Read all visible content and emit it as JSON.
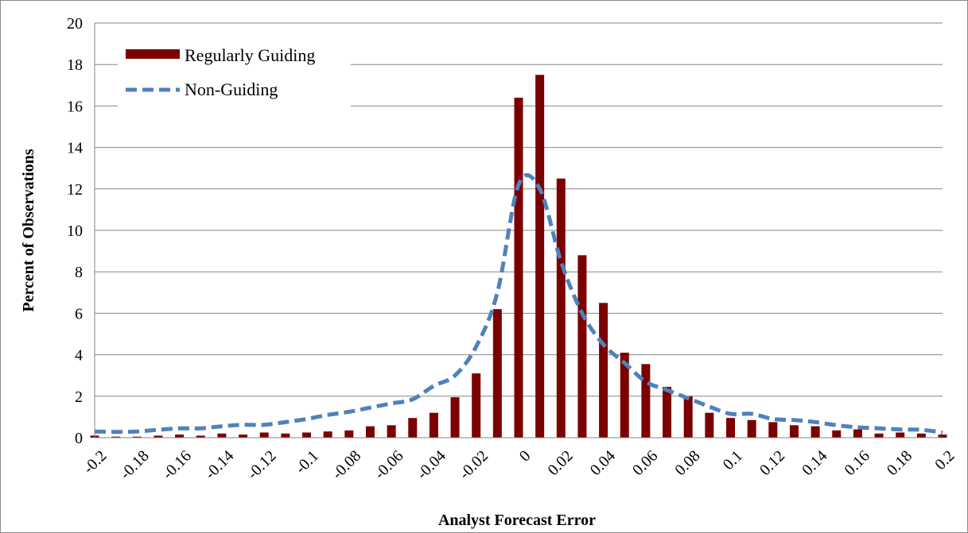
{
  "chart_data": {
    "type": "bar",
    "xlabel": "Analyst Forecast Error",
    "ylabel": "Percent of Observations",
    "ylim": [
      0,
      20
    ],
    "yticks": [
      "0",
      "2",
      "4",
      "6",
      "8",
      "10",
      "12",
      "14",
      "16",
      "18",
      "20"
    ],
    "categories": [
      "-0.2",
      "-0.19",
      "-0.18",
      "-0.17",
      "-0.16",
      "-0.15",
      "-0.14",
      "-0.13",
      "-0.12",
      "-0.11",
      "-0.1",
      "-0.09",
      "-0.08",
      "-0.07",
      "-0.06",
      "-0.05",
      "-0.04",
      "-0.03",
      "-0.02",
      "-0.01",
      "0",
      "0.01",
      "0.02",
      "0.03",
      "0.04",
      "0.05",
      "0.06",
      "0.07",
      "0.08",
      "0.09",
      "0.1",
      "0.11",
      "0.12",
      "0.13",
      "0.14",
      "0.15",
      "0.16",
      "0.17",
      "0.18",
      "0.19",
      "0.2"
    ],
    "xtick_labels": [
      "-0.2",
      "-0.18",
      "-0.16",
      "-0.14",
      "-0.12",
      "-0.1",
      "-0.08",
      "-0.06",
      "-0.04",
      "-0.02",
      "0",
      "0.02",
      "0.04",
      "0.06",
      "0.08",
      "0.1",
      "0.12",
      "0.14",
      "0.16",
      "0.18",
      "0.2"
    ],
    "grid": true,
    "legend_position": "top-left",
    "series": [
      {
        "name": "Regularly Guiding",
        "kind": "bar",
        "color": "#7b0000",
        "values": [
          0.1,
          0.05,
          0.05,
          0.1,
          0.15,
          0.1,
          0.2,
          0.15,
          0.25,
          0.2,
          0.25,
          0.3,
          0.35,
          0.55,
          0.6,
          0.95,
          1.2,
          1.95,
          3.1,
          6.2,
          16.4,
          17.5,
          12.5,
          8.8,
          6.5,
          4.1,
          3.55,
          2.45,
          2.0,
          1.2,
          0.95,
          0.85,
          0.75,
          0.6,
          0.55,
          0.35,
          0.4,
          0.2,
          0.25,
          0.2,
          0.15
        ]
      },
      {
        "name": "Non-Guiding",
        "kind": "line",
        "style": "dashed",
        "color": "#4f81bd",
        "values": [
          0.3,
          0.28,
          0.3,
          0.38,
          0.45,
          0.45,
          0.55,
          0.62,
          0.62,
          0.75,
          0.9,
          1.1,
          1.25,
          1.45,
          1.65,
          1.85,
          2.5,
          3.0,
          4.4,
          7.0,
          12.2,
          12.0,
          8.5,
          6.0,
          4.5,
          3.6,
          2.7,
          2.3,
          1.9,
          1.5,
          1.15,
          1.15,
          0.9,
          0.85,
          0.75,
          0.6,
          0.5,
          0.45,
          0.4,
          0.38,
          0.25
        ]
      }
    ]
  }
}
